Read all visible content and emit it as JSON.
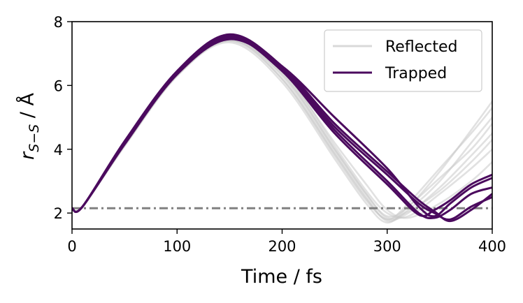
{
  "chart_data": {
    "type": "line",
    "title": "",
    "xlabel": "Time / fs",
    "ylabel": {
      "base": "r",
      "subscript": "S−S",
      "suffix": " / Å"
    },
    "xlim": [
      0,
      400
    ],
    "ylim": [
      1.5,
      8
    ],
    "xticks": [
      "0",
      "100",
      "200",
      "300",
      "400"
    ],
    "yticks": [
      "2",
      "4",
      "6",
      "8"
    ],
    "grid": false,
    "legend_position": "top-right",
    "legend": [
      {
        "label": "Reflected",
        "color": "#d9d9d9"
      },
      {
        "label": "Trapped",
        "color": "#4b0a5e"
      }
    ],
    "reference_line": {
      "y": 2.15,
      "style": "dash-dot",
      "color": "#808080"
    },
    "series": [
      {
        "group": "Reflected",
        "color": "#c8c8c8",
        "trajectories": [
          {
            "x": [
              0,
              10,
              50,
              100,
              150,
              200,
              250,
              280,
              300,
              320,
              350,
              380,
              400
            ],
            "y": [
              2.15,
              2.2,
              4.2,
              6.4,
              7.5,
              6.4,
              4.0,
              2.6,
              1.9,
              2.2,
              3.3,
              4.6,
              5.5
            ]
          },
          {
            "x": [
              0,
              10,
              50,
              100,
              150,
              200,
              250,
              280,
              300,
              320,
              350,
              380,
              400
            ],
            "y": [
              2.15,
              2.2,
              4.1,
              6.3,
              7.4,
              6.2,
              3.8,
              2.4,
              1.8,
              2.0,
              2.8,
              3.8,
              4.5
            ]
          },
          {
            "x": [
              0,
              10,
              50,
              100,
              150,
              200,
              250,
              280,
              300,
              320,
              350,
              380,
              400
            ],
            "y": [
              2.15,
              2.2,
              4.15,
              6.35,
              7.45,
              6.3,
              3.9,
              2.5,
              1.75,
              2.1,
              3.0,
              4.2,
              5.0
            ]
          },
          {
            "x": [
              0,
              10,
              50,
              100,
              150,
              200,
              250,
              280,
              300,
              320,
              350,
              380,
              400
            ],
            "y": [
              2.15,
              2.2,
              4.2,
              6.4,
              7.55,
              6.5,
              4.1,
              2.7,
              2.0,
              1.9,
              2.6,
              3.4,
              4.0
            ]
          },
          {
            "x": [
              0,
              10,
              50,
              100,
              150,
              200,
              250,
              280,
              300,
              320,
              350,
              380,
              400
            ],
            "y": [
              2.15,
              2.2,
              4.1,
              6.3,
              7.35,
              6.1,
              3.7,
              2.3,
              1.7,
              2.2,
              3.1,
              4.0,
              4.8
            ]
          },
          {
            "x": [
              0,
              10,
              50,
              100,
              150,
              200,
              250,
              280,
              300,
              320,
              350,
              380,
              400
            ],
            "y": [
              2.15,
              2.2,
              4.25,
              6.45,
              7.5,
              6.45,
              4.2,
              2.9,
              2.1,
              1.85,
              2.3,
              3.0,
              3.6
            ]
          },
          {
            "x": [
              0,
              10,
              50,
              100,
              150,
              200,
              250,
              280,
              300,
              320,
              350,
              380,
              400
            ],
            "y": [
              2.15,
              2.2,
              4.15,
              6.35,
              7.4,
              6.35,
              4.0,
              2.6,
              1.85,
              2.05,
              2.7,
              3.6,
              4.3
            ]
          },
          {
            "x": [
              0,
              10,
              50,
              100,
              150,
              200,
              250,
              280,
              300,
              320,
              350,
              380,
              400
            ],
            "y": [
              2.15,
              2.2,
              4.2,
              6.4,
              7.45,
              6.2,
              3.85,
              2.45,
              1.8,
              2.3,
              3.4,
              4.5,
              5.3
            ]
          }
        ]
      },
      {
        "group": "Trapped",
        "color": "#4b0a5e",
        "trajectories": [
          {
            "x": [
              0,
              10,
              50,
              100,
              150,
              200,
              250,
              300,
              330,
              345,
              360,
              380,
              400
            ],
            "y": [
              2.15,
              2.2,
              4.2,
              6.4,
              7.5,
              6.6,
              5.0,
              3.4,
              2.2,
              1.9,
              2.3,
              2.8,
              3.1
            ]
          },
          {
            "x": [
              0,
              10,
              50,
              100,
              150,
              200,
              250,
              300,
              330,
              345,
              360,
              380,
              400
            ],
            "y": [
              2.15,
              2.2,
              4.2,
              6.4,
              7.55,
              6.5,
              4.6,
              3.0,
              2.0,
              1.85,
              2.1,
              2.6,
              2.8
            ]
          },
          {
            "x": [
              0,
              10,
              50,
              100,
              150,
              200,
              250,
              300,
              330,
              345,
              360,
              380,
              400
            ],
            "y": [
              2.15,
              2.2,
              4.15,
              6.35,
              7.45,
              6.55,
              4.7,
              3.2,
              2.3,
              2.0,
              1.8,
              2.2,
              2.5
            ]
          },
          {
            "x": [
              0,
              10,
              50,
              100,
              150,
              200,
              250,
              300,
              330,
              345,
              360,
              380,
              400
            ],
            "y": [
              2.15,
              2.2,
              4.2,
              6.4,
              7.5,
              6.45,
              4.5,
              2.9,
              1.95,
              2.1,
              2.4,
              2.9,
              3.2
            ]
          },
          {
            "x": [
              0,
              10,
              50,
              100,
              150,
              200,
              250,
              300,
              330,
              345,
              360,
              380,
              400
            ],
            "y": [
              2.15,
              2.2,
              4.25,
              6.45,
              7.6,
              6.6,
              4.8,
              3.3,
              2.4,
              2.05,
              1.75,
              2.1,
              2.6
            ]
          }
        ]
      }
    ]
  }
}
